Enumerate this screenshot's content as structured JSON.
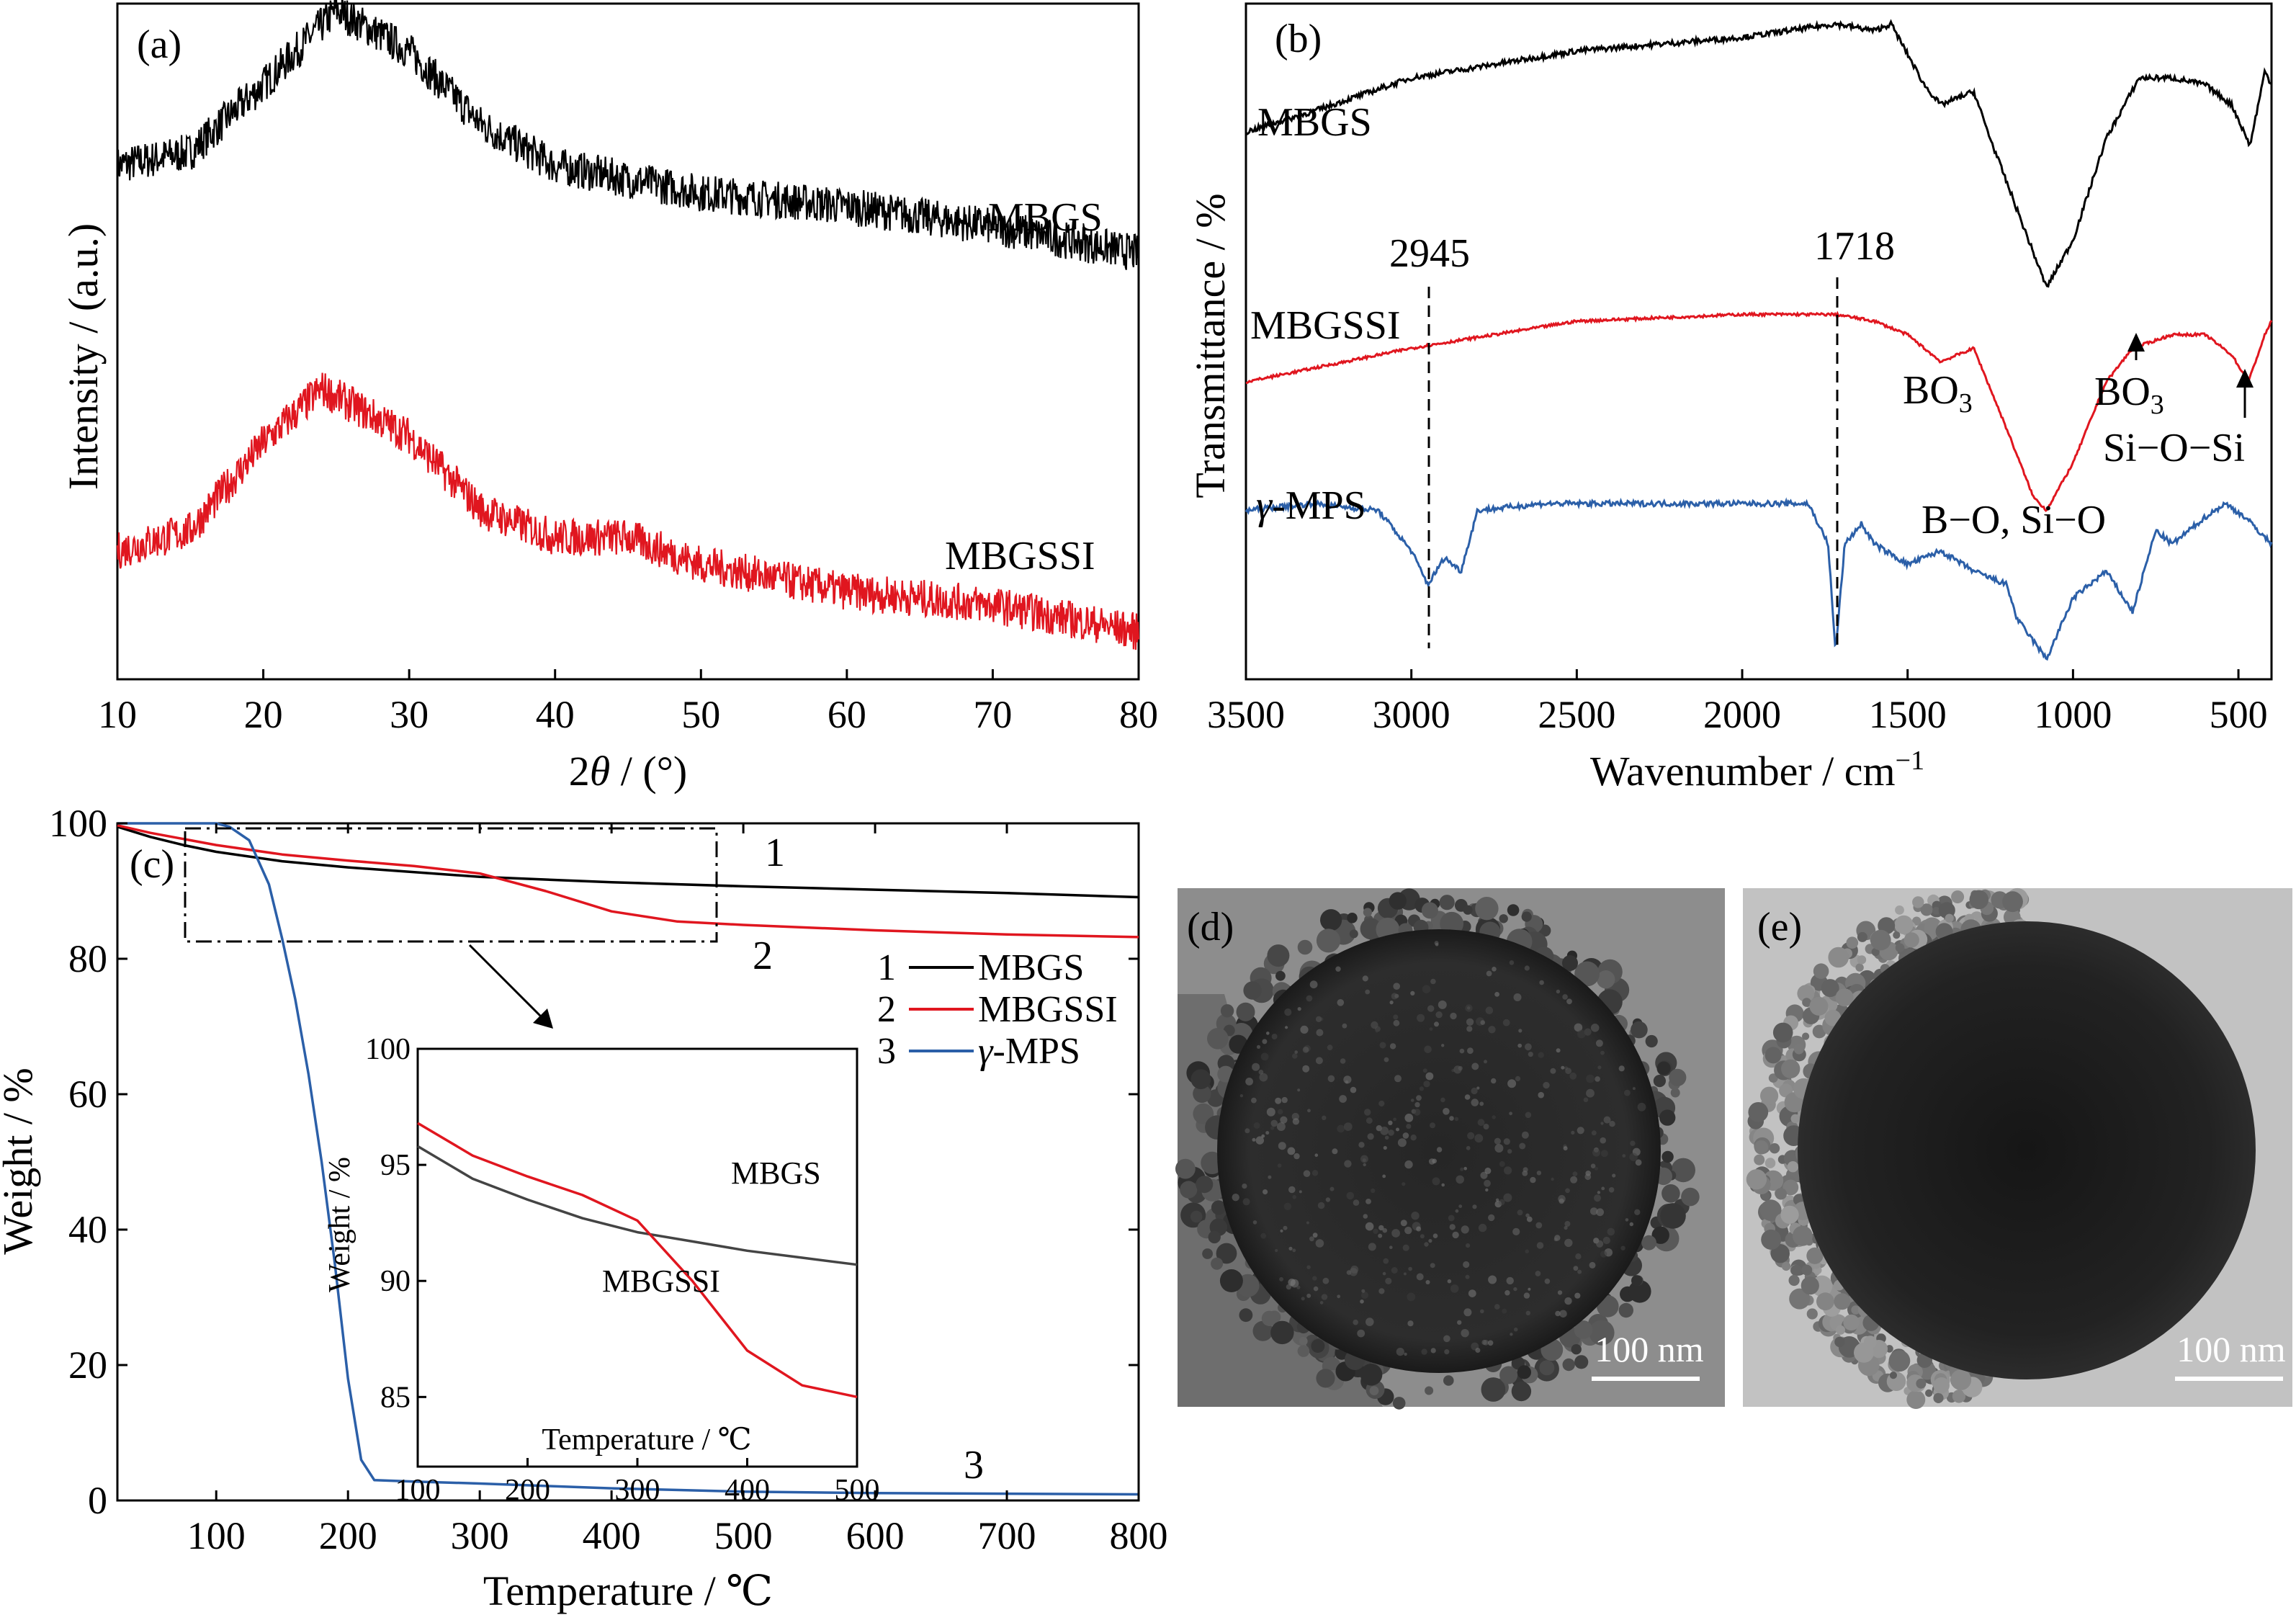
{
  "colors": {
    "mbgs": "#000000",
    "mbgssi": "#e0161f",
    "mps": "#2b5fa8",
    "axis": "#000000"
  },
  "panel_a": {
    "label": "(a)",
    "xlabel_pre": "2",
    "xlabel_theta": "θ",
    "xlabel_post": " / (°)",
    "ylabel": "Intensity / (a.u.)",
    "label_mbgs": "MBGS",
    "label_mbgssi": "MBGSSI"
  },
  "panel_b": {
    "label": "(b)",
    "xlabel_pre": "Wavenumber / cm",
    "xlabel_sup": "−1",
    "ylabel": "Transmittance / %",
    "label_mbgs": "MBGS",
    "label_mbgssi": "MBGSSI",
    "label_mps_italic": "γ",
    "label_mps_rest": "-MPS",
    "peak_2945": "2945",
    "peak_1718": "1718",
    "ann_bo3_1": "BO",
    "ann_bo3_1_sub": "3",
    "ann_bo3_2": "BO",
    "ann_bo3_2_sub": "3",
    "ann_sios": "Si−O−Si",
    "ann_bosio": "B−O, Si−O"
  },
  "panel_c": {
    "label": "(c)",
    "xlabel": "Temperature / ℃",
    "ylabel": "Weight / %",
    "curve_num_1": "1",
    "curve_num_2": "2",
    "curve_num_3": "3",
    "legend": [
      {
        "num": "1",
        "name": "MBGS"
      },
      {
        "num": "2",
        "name": "MBGSSI"
      },
      {
        "num": "3",
        "name_italic": "γ",
        "name_rest": "-MPS"
      }
    ],
    "inset": {
      "xlabel": "Temperature / ℃",
      "ylabel": "Weight / %",
      "label_mbgs": "MBGS",
      "label_mbgssi": "MBGSSI"
    }
  },
  "panel_d": {
    "label": "(d)",
    "scale": "100 nm"
  },
  "panel_e": {
    "label": "(e)",
    "scale": "100 nm"
  },
  "chart_data": [
    {
      "panel": "a",
      "type": "line",
      "xlim": [
        10,
        80
      ],
      "xticks": [
        10,
        20,
        30,
        40,
        50,
        60,
        70,
        80
      ],
      "series": [
        {
          "name": "MBGS",
          "x": [
            10,
            15,
            20,
            25,
            30,
            35,
            40,
            50,
            60,
            70,
            80
          ],
          "y": [
            0.76,
            0.78,
            0.88,
            0.99,
            0.93,
            0.82,
            0.76,
            0.72,
            0.7,
            0.67,
            0.63
          ]
        },
        {
          "name": "MBGSSI",
          "x": [
            10,
            15,
            20,
            24,
            30,
            35,
            40,
            45,
            50,
            60,
            70,
            80
          ],
          "y": [
            0.19,
            0.22,
            0.35,
            0.43,
            0.36,
            0.25,
            0.21,
            0.21,
            0.17,
            0.13,
            0.11,
            0.07
          ]
        }
      ]
    },
    {
      "panel": "b",
      "type": "line",
      "xlim": [
        3500,
        400
      ],
      "xticks": [
        3500,
        3000,
        2500,
        2000,
        1500,
        1000,
        500
      ],
      "series": [
        {
          "name": "MBGS",
          "x": [
            3500,
            3300,
            3000,
            2500,
            2000,
            1718,
            1600,
            1550,
            1450,
            1400,
            1300,
            1250,
            1150,
            1080,
            1000,
            900,
            800,
            700,
            600,
            520,
            465,
            420,
            400
          ],
          "y": [
            0.81,
            0.84,
            0.89,
            0.93,
            0.95,
            0.97,
            0.96,
            0.97,
            0.88,
            0.85,
            0.87,
            0.8,
            0.67,
            0.58,
            0.65,
            0.8,
            0.89,
            0.89,
            0.88,
            0.85,
            0.79,
            0.9,
            0.88
          ]
        },
        {
          "name": "MBGSSI",
          "x": [
            3500,
            3000,
            2500,
            2000,
            1718,
            1600,
            1500,
            1400,
            1300,
            1200,
            1120,
            1080,
            1000,
            900,
            820,
            700,
            600,
            520,
            470,
            420,
            400
          ],
          "y": [
            0.44,
            0.49,
            0.53,
            0.54,
            0.54,
            0.53,
            0.51,
            0.47,
            0.49,
            0.37,
            0.27,
            0.25,
            0.32,
            0.44,
            0.49,
            0.51,
            0.51,
            0.48,
            0.44,
            0.51,
            0.53
          ]
        },
        {
          "name": "γ-MPS",
          "x": [
            3500,
            3300,
            3100,
            3000,
            2950,
            2900,
            2850,
            2800,
            2600,
            2400,
            2000,
            1800,
            1740,
            1718,
            1690,
            1640,
            1600,
            1500,
            1400,
            1300,
            1200,
            1170,
            1080,
            1000,
            900,
            820,
            750,
            700,
            600,
            540,
            480,
            420,
            400
          ],
          "y": [
            0.25,
            0.26,
            0.25,
            0.19,
            0.14,
            0.18,
            0.16,
            0.25,
            0.26,
            0.26,
            0.26,
            0.26,
            0.2,
            0.04,
            0.2,
            0.23,
            0.2,
            0.17,
            0.19,
            0.16,
            0.14,
            0.09,
            0.03,
            0.12,
            0.16,
            0.1,
            0.22,
            0.2,
            0.24,
            0.26,
            0.24,
            0.21,
            0.2
          ]
        }
      ]
    },
    {
      "panel": "c",
      "type": "line",
      "xlim": [
        25,
        800
      ],
      "ylim": [
        0,
        100
      ],
      "xticks": [
        100,
        200,
        300,
        400,
        500,
        600,
        700,
        800
      ],
      "yticks": [
        0,
        20,
        40,
        60,
        80,
        100
      ],
      "series": [
        {
          "name": "MBGS",
          "x": [
            25,
            50,
            75,
            100,
            150,
            200,
            300,
            400,
            500,
            600,
            700,
            800
          ],
          "y": [
            99.5,
            98.0,
            96.8,
            95.8,
            94.4,
            93.5,
            92.1,
            91.3,
            90.7,
            90.2,
            89.7,
            89.1
          ]
        },
        {
          "name": "MBGSSI",
          "x": [
            25,
            50,
            100,
            150,
            200,
            250,
            300,
            350,
            400,
            450,
            500,
            600,
            700,
            800
          ],
          "y": [
            99.7,
            98.6,
            96.8,
            95.4,
            94.5,
            93.7,
            92.6,
            90.0,
            87.0,
            85.5,
            85.0,
            84.2,
            83.6,
            83.2
          ]
        },
        {
          "name": "γ-MPS",
          "x": [
            25,
            80,
            100,
            110,
            125,
            140,
            150,
            160,
            170,
            180,
            190,
            200,
            210,
            220,
            250,
            300,
            400,
            500,
            600,
            700,
            800
          ],
          "y": [
            100,
            100,
            100,
            99.5,
            97.5,
            91,
            83,
            74,
            63,
            50,
            35,
            18,
            6,
            3,
            2.8,
            2.5,
            1.8,
            1.3,
            1.1,
            1.0,
            0.9
          ]
        }
      ]
    },
    {
      "panel": "c-inset",
      "type": "line",
      "xlim": [
        100,
        500
      ],
      "ylim": [
        82,
        100
      ],
      "xticks": [
        100,
        200,
        300,
        400,
        500
      ],
      "yticks": [
        85,
        90,
        95,
        100
      ],
      "series": [
        {
          "name": "MBGS",
          "x": [
            100,
            150,
            200,
            250,
            300,
            350,
            400,
            450,
            500
          ],
          "y": [
            95.8,
            94.4,
            93.5,
            92.7,
            92.1,
            91.7,
            91.3,
            91.0,
            90.7
          ]
        },
        {
          "name": "MBGSSI",
          "x": [
            100,
            150,
            200,
            250,
            300,
            350,
            400,
            450,
            500
          ],
          "y": [
            96.8,
            95.4,
            94.5,
            93.7,
            92.6,
            90.0,
            87.0,
            85.5,
            85.0
          ]
        }
      ]
    }
  ]
}
